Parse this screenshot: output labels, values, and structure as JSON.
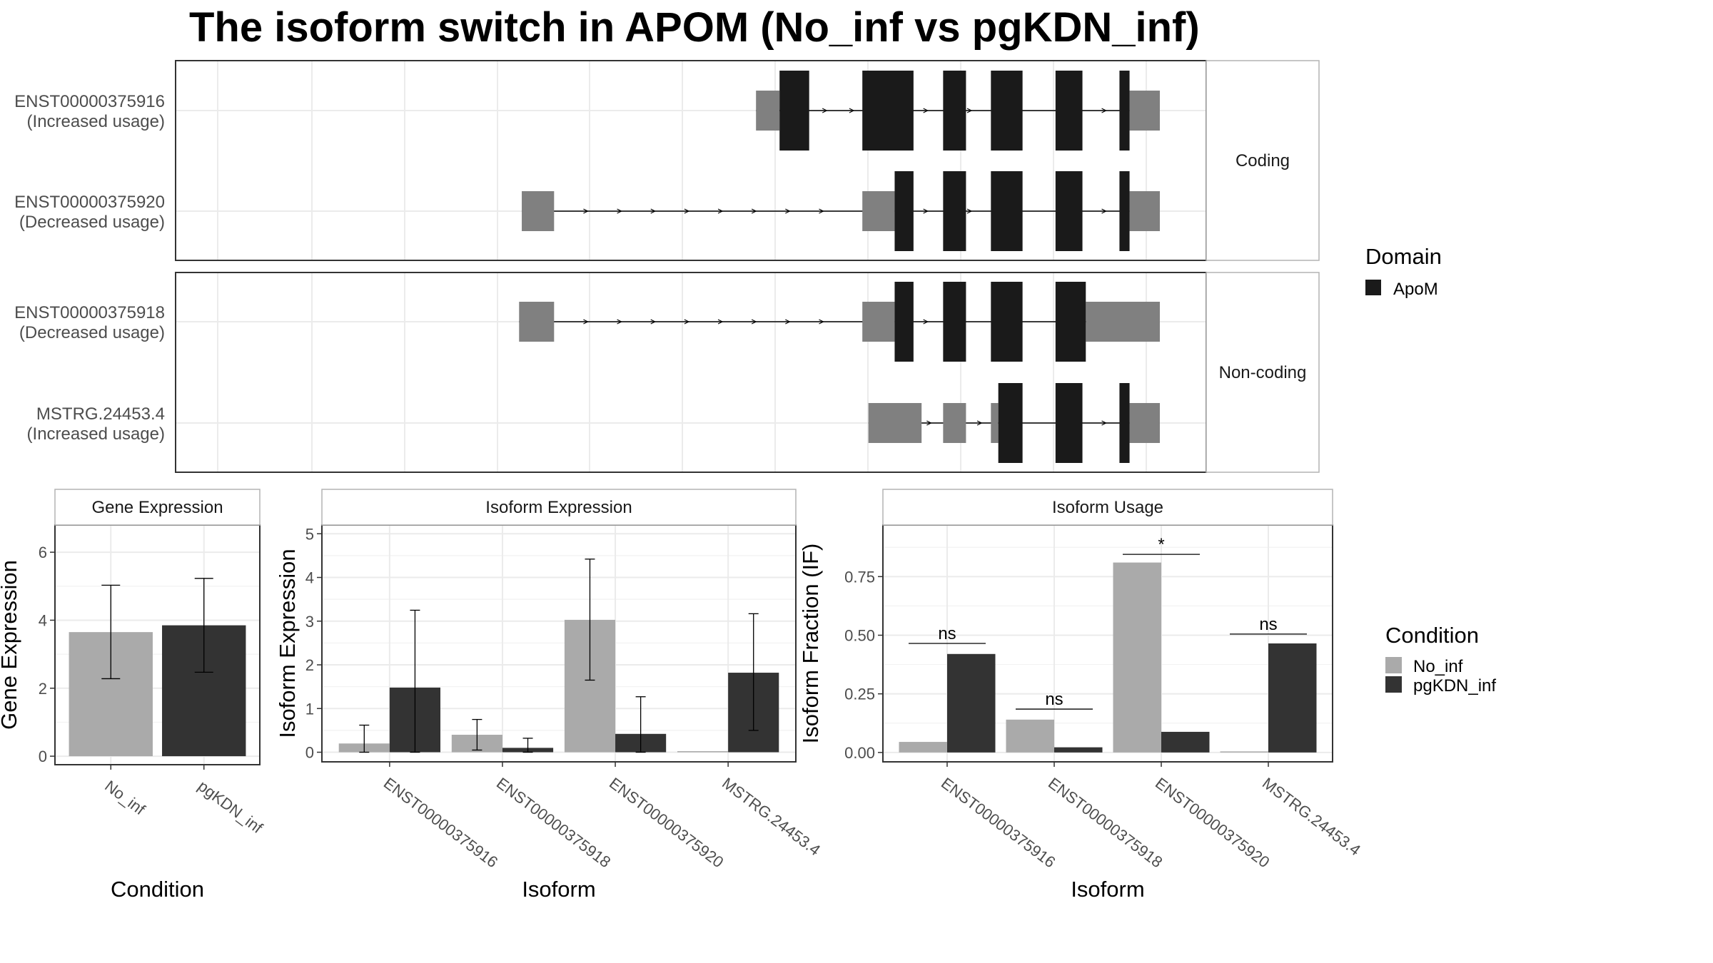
{
  "title": "The isoform switch in APOM (No_inf vs pgKDN_inf)",
  "colors": {
    "no_inf": "#aaaaaa",
    "pgkdn_inf": "#333333",
    "domain": "#1a1a1a",
    "utr": "#808080",
    "grid": "#ebebeb",
    "panel_border": "#333333",
    "strip_border": "#b3b3b3"
  },
  "chart_data": [
    {
      "type": "gene_structure",
      "facets": [
        {
          "label": "Coding",
          "transcripts": [
            {
              "id": "ENST00000375916",
              "note": "(Increased usage)",
              "span": [
                0.4,
                0.96
              ],
              "utr": [
                [
                  0.4,
                  0.435
                ],
                [
                  0.955,
                  1.0
                ]
              ],
              "domain": [
                [
                  0.435,
                  0.479
                ],
                [
                  0.558,
                  0.634
                ],
                [
                  0.678,
                  0.712
                ],
                [
                  0.749,
                  0.796
                ],
                [
                  0.845,
                  0.885
                ],
                [
                  0.94,
                  0.955
                ]
              ],
              "arrows": [
                0.505,
                0.545,
                0.605,
                0.655,
                0.69,
                0.72,
                0.88,
                0.92
              ]
            },
            {
              "id": "ENST00000375920",
              "note": "(Decreased usage)",
              "span": [
                0.052,
                0.96
              ],
              "utr": [
                [
                  0.052,
                  0.1
                ],
                [
                  0.558,
                  0.606
                ],
                [
                  0.955,
                  1.0
                ]
              ],
              "domain": [
                [
                  0.606,
                  0.634
                ],
                [
                  0.678,
                  0.712
                ],
                [
                  0.749,
                  0.796
                ],
                [
                  0.845,
                  0.885
                ],
                [
                  0.94,
                  0.955
                ]
              ],
              "arrows": [
                0.15,
                0.2,
                0.25,
                0.3,
                0.35,
                0.4,
                0.45,
                0.5,
                0.655,
                0.69,
                0.72,
                0.88,
                0.92
              ]
            }
          ]
        },
        {
          "label": "Non-coding",
          "transcripts": [
            {
              "id": "ENST00000375918",
              "note": "(Decreased usage)",
              "span": [
                0.048,
                0.96
              ],
              "utr": [
                [
                  0.048,
                  0.1
                ],
                [
                  0.558,
                  0.606
                ],
                [
                  0.89,
                  1.0
                ]
              ],
              "domain": [
                [
                  0.606,
                  0.634
                ],
                [
                  0.678,
                  0.712
                ],
                [
                  0.749,
                  0.796
                ],
                [
                  0.845,
                  0.89
                ]
              ],
              "arrows": [
                0.15,
                0.2,
                0.25,
                0.3,
                0.35,
                0.4,
                0.45,
                0.5,
                0.655,
                0.69
              ]
            },
            {
              "id": "MSTRG.24453.4",
              "note": "(Increased usage)",
              "span": [
                0.567,
                0.96
              ],
              "utr": [
                [
                  0.567,
                  0.646
                ],
                [
                  0.678,
                  0.712
                ],
                [
                  0.749,
                  0.76
                ],
                [
                  0.955,
                  1.0
                ]
              ],
              "domain": [
                [
                  0.76,
                  0.796
                ],
                [
                  0.845,
                  0.885
                ],
                [
                  0.94,
                  0.955
                ]
              ],
              "arrows": [
                0.66,
                0.7,
                0.735,
                0.88,
                0.92
              ]
            }
          ]
        }
      ],
      "legend": {
        "title": "Domain",
        "items": [
          "ApoM"
        ]
      }
    },
    {
      "type": "bar",
      "title": "Gene Expression",
      "xlabel": "Condition",
      "ylabel": "Gene Expression",
      "categories": [
        "No_inf",
        "pgKDN_inf"
      ],
      "values": [
        3.65,
        3.85
      ],
      "errors": [
        [
          2.28,
          5.03
        ],
        [
          2.47,
          5.23
        ]
      ],
      "ylim": [
        -0.25,
        6.8
      ],
      "yticks": [
        0,
        2,
        4,
        6
      ]
    },
    {
      "type": "bar",
      "title": "Isoform Expression",
      "xlabel": "Isoform",
      "ylabel": "Isoform Expression",
      "categories": [
        "ENST00000375916",
        "ENST00000375918",
        "ENST00000375920",
        "MSTRG.24453.4"
      ],
      "series": [
        {
          "name": "No_inf",
          "values": [
            0.2,
            0.4,
            3.03,
            0.0
          ],
          "errors": [
            [
              0.0,
              0.62
            ],
            [
              0.05,
              0.75
            ],
            [
              1.65,
              4.42
            ],
            [
              0.0,
              0.0
            ]
          ]
        },
        {
          "name": "pgKDN_inf",
          "values": [
            1.48,
            0.1,
            0.42,
            1.82
          ],
          "errors": [
            [
              0.0,
              3.25
            ],
            [
              0.0,
              0.32
            ],
            [
              0.0,
              1.27
            ],
            [
              0.5,
              3.17
            ]
          ]
        }
      ],
      "ylim": [
        -0.22,
        5.2
      ],
      "yticks": [
        0,
        1,
        2,
        3,
        4,
        5
      ]
    },
    {
      "type": "bar",
      "title": "Isoform Usage",
      "xlabel": "Isoform",
      "ylabel": "Isoform Fraction (IF)",
      "categories": [
        "ENST00000375916",
        "ENST00000375918",
        "ENST00000375920",
        "MSTRG.24453.4"
      ],
      "series": [
        {
          "name": "No_inf",
          "values": [
            0.045,
            0.14,
            0.81,
            0.0
          ]
        },
        {
          "name": "pgKDN_inf",
          "values": [
            0.42,
            0.022,
            0.088,
            0.465
          ]
        }
      ],
      "significance": [
        "ns",
        "ns",
        "*",
        "ns"
      ],
      "sig_y": [
        0.465,
        0.185,
        0.845,
        0.505
      ],
      "ylim": [
        -0.04,
        0.97
      ],
      "yticks": [
        0.0,
        0.25,
        0.5,
        0.75
      ],
      "ytick_labels": [
        "0.00",
        "0.25",
        "0.50",
        "0.75"
      ]
    }
  ],
  "condition_legend": {
    "title": "Condition",
    "items": [
      "No_inf",
      "pgKDN_inf"
    ]
  }
}
